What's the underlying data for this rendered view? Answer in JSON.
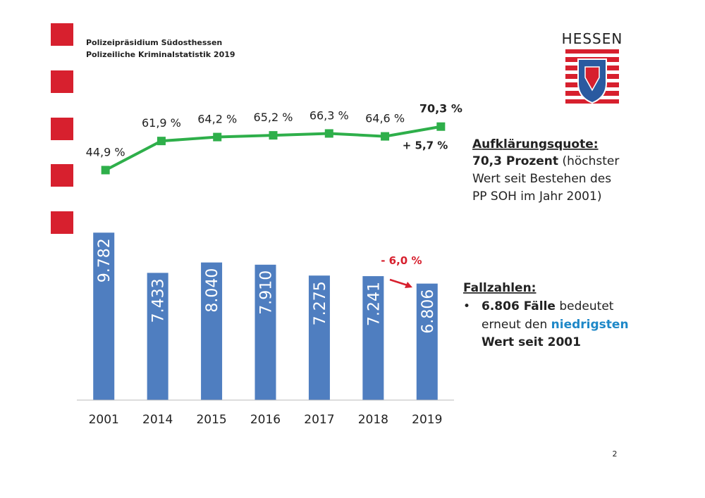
{
  "header": {
    "line1": "Polizeipräsidium Südosthessen",
    "line2": "Polizeiliche Kriminalstatistik 2019"
  },
  "logo_text": "HESSEN",
  "quote_box": {
    "heading": "Aufklärungsquote:",
    "line1_bold": "70,3 Prozent",
    "line1_rest": " (höchster",
    "line2": "Wert seit Bestehen des",
    "line3": "PP SOH im Jahr 2001)"
  },
  "cases_box": {
    "heading": "Fallzahlen:",
    "bullet": "•",
    "line1_bold": "6.806 Fälle",
    "line1_rest": " bedeutet",
    "line2_plain": "erneut den ",
    "line2_blue": "niedrigsten",
    "line3_blue": "Wert seit 2001"
  },
  "page_number": "2",
  "chart_data": [
    {
      "type": "line",
      "color": "#2eaf4a",
      "values": [
        44.9,
        61.9,
        64.2,
        65.2,
        66.3,
        64.6,
        70.3
      ],
      "value_labels": [
        "44,9 %",
        "61,9 %",
        "64,2 %",
        "65,2 %",
        "66,3 %",
        "64,6 %",
        "70,3 %"
      ],
      "ylim": [
        20,
        85
      ],
      "annotation": "+ 5,7 %"
    },
    {
      "type": "bar",
      "color": "#4f7ec0",
      "categories": [
        "2001",
        "2014",
        "2015",
        "2016",
        "2017",
        "2018",
        "2019"
      ],
      "values": [
        9782,
        7433,
        8040,
        7910,
        7275,
        7241,
        6806
      ],
      "value_labels": [
        "9.782",
        "7.433",
        "8.040",
        "7.910",
        "7.275",
        "7.241",
        "6.806"
      ],
      "ylim": [
        0,
        10000
      ],
      "annotation": "- 6,0 %"
    }
  ]
}
